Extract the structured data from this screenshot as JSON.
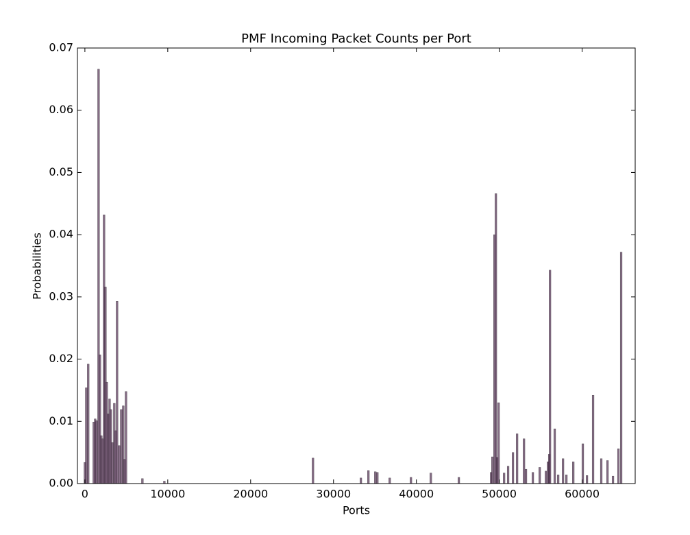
{
  "chart_data": {
    "type": "bar",
    "title": "PMF Incoming Packet Counts per Port",
    "xlabel": "Ports",
    "ylabel": "Probabilities",
    "color": "#5e3d5e",
    "xlim": [
      -900,
      66400
    ],
    "ylim": [
      0,
      0.07
    ],
    "xticks": [
      0,
      10000,
      20000,
      30000,
      40000,
      50000,
      60000
    ],
    "yticks": [
      {
        "value": 0,
        "label": "0.00"
      },
      0.01,
      0.02,
      0.03,
      0.04,
      0.05,
      0.06,
      0.07
    ],
    "x": [
      0,
      165,
      400,
      1070,
      1240,
      1400,
      1650,
      1820,
      1980,
      2150,
      2310,
      2480,
      2640,
      2810,
      2980,
      3140,
      3310,
      3550,
      3720,
      3880,
      4130,
      4380,
      4630,
      4790,
      4960,
      6940,
      9590,
      27520,
      33300,
      34210,
      35040,
      35290,
      36780,
      39340,
      41740,
      45120,
      49010,
      49170,
      49420,
      49590,
      49750,
      49920,
      50580,
      51070,
      51650,
      52150,
      52980,
      53220,
      54050,
      54880,
      55620,
      55870,
      56030,
      56120,
      56690,
      57110,
      57690,
      58100,
      58930,
      60080,
      60580,
      61320,
      62310,
      63060,
      63720,
      64380,
      64710
    ],
    "values": [
      0.0034,
      0.0154,
      0.0192,
      0.0099,
      0.0104,
      0.0101,
      0.0666,
      0.0207,
      0.0077,
      0.0072,
      0.0432,
      0.0316,
      0.0163,
      0.0112,
      0.0136,
      0.0119,
      0.0066,
      0.0129,
      0.0085,
      0.0293,
      0.0061,
      0.0119,
      0.0125,
      0.0039,
      0.0148,
      0.0008,
      0.0004,
      0.0041,
      0.0009,
      0.0021,
      0.0019,
      0.0018,
      0.0009,
      0.001,
      0.0017,
      0.001,
      0.0018,
      0.0043,
      0.04,
      0.0466,
      0.0042,
      0.013,
      0.0017,
      0.0028,
      0.005,
      0.008,
      0.0072,
      0.0023,
      0.0018,
      0.0026,
      0.002,
      0.0035,
      0.0047,
      0.0343,
      0.0088,
      0.0014,
      0.004,
      0.0014,
      0.0035,
      0.0064,
      0.0013,
      0.0142,
      0.004,
      0.0037,
      0.0012,
      0.0056,
      0.0372
    ]
  }
}
